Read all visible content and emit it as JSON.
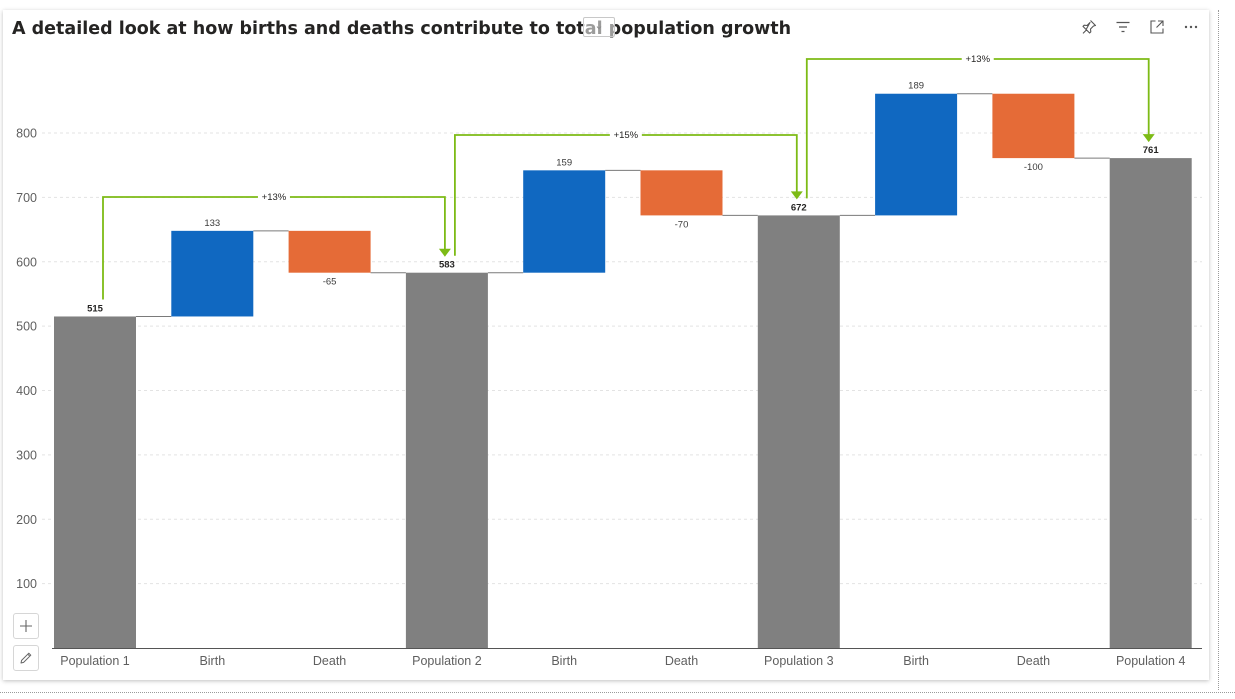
{
  "visual": {
    "title": "A detailed look at how births and deaths contribute to total population growth",
    "header_icons": [
      "pin-icon",
      "filter-icon",
      "focus-mode-icon",
      "more-options-icon"
    ],
    "side_tools": [
      "plus-icon",
      "pencil-icon"
    ]
  },
  "chart_data": {
    "type": "bar",
    "subtype": "waterfall",
    "categories": [
      "Population 1",
      "Birth",
      "Death",
      "Population 2",
      "Birth",
      "Death",
      "Population 3",
      "Birth",
      "Death",
      "Population 4"
    ],
    "values": [
      515,
      133,
      -65,
      583,
      159,
      -70,
      672,
      189,
      -100,
      761
    ],
    "value_labels": [
      "515",
      "133",
      "-65",
      "583",
      "159",
      "-70",
      "672",
      "189",
      "-100",
      "761"
    ],
    "kinds": [
      "total",
      "increase",
      "decrease",
      "total",
      "increase",
      "decrease",
      "total",
      "increase",
      "decrease",
      "total"
    ],
    "yticks": [
      100,
      200,
      300,
      400,
      500,
      600,
      700,
      800
    ],
    "ylim": [
      0,
      880
    ],
    "grid": true,
    "growth_annotations": [
      {
        "from": "Population 1",
        "to": "Population 2",
        "label": "+13%"
      },
      {
        "from": "Population 2",
        "to": "Population 3",
        "label": "+15%"
      },
      {
        "from": "Population 3",
        "to": "Population 4",
        "label": "+13%"
      }
    ],
    "colors": {
      "total": "#808080",
      "increase": "#1068c1",
      "decrease": "#e56b37",
      "annotation": "#7dbb16",
      "connector": "#7a7a7a",
      "grid": "#e3e3e3",
      "axis": "#555555"
    }
  }
}
